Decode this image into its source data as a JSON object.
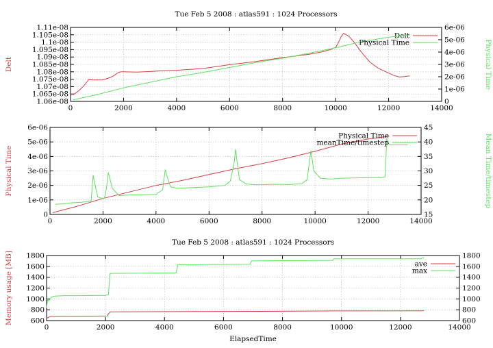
{
  "colors": {
    "red": "#d64040",
    "green": "#5fe05f"
  },
  "chart_data": [
    {
      "type": "line",
      "title": "Tue Feb 5 2008 : atlas591 : 1024 Processors",
      "xlim": [
        0,
        14000
      ],
      "xticks": [
        0,
        2000,
        4000,
        6000,
        8000,
        10000,
        12000,
        14000
      ],
      "xtick_labels": [
        "0",
        "2000",
        "4000",
        "6000",
        "8000",
        "10000",
        "12000",
        "14000"
      ],
      "ylabel_left": "Delt",
      "ylabel_right": "Physical Time",
      "ylim_left": [
        1.06e-08,
        1.11e-08
      ],
      "yticks_left": [
        1.06e-08,
        1.065e-08,
        1.07e-08,
        1.075e-08,
        1.08e-08,
        1.085e-08,
        1.09e-08,
        1.095e-08,
        1.1e-08,
        1.105e-08,
        1.11e-08
      ],
      "ytick_labels_left": [
        "1.06e-08",
        "1.065e-08",
        "1.07e-08",
        "1.075e-08",
        "1.08e-08",
        "1.085e-08",
        "1.09e-08",
        "1.095e-08",
        "1.1e-08",
        "1.105e-08",
        "1.11e-08"
      ],
      "ylim_right": [
        0,
        6e-06
      ],
      "yticks_right": [
        0,
        1e-06,
        2e-06,
        3e-06,
        4e-06,
        5e-06,
        6e-06
      ],
      "ytick_labels_right": [
        "0",
        "1e-06",
        "2e-06",
        "3e-06",
        "4e-06",
        "5e-06",
        "6e-06"
      ],
      "grid": true,
      "legend_position": "top-right",
      "series": [
        {
          "name": "Delt",
          "axis": "left",
          "color": "#d64040",
          "x": [
            100,
            300,
            500,
            700,
            800,
            1000,
            1200,
            1400,
            1600,
            1800,
            1900,
            2000,
            2500,
            3000,
            3500,
            4000,
            5000,
            6000,
            7000,
            8000,
            9000,
            9500,
            9800,
            10000,
            10100,
            10200,
            10300,
            10500,
            10700,
            10900,
            11100,
            11300,
            11600,
            11900,
            12200,
            12400,
            12600,
            12800
          ],
          "y": [
            1.0645e-08,
            1.067e-08,
            1.0705e-08,
            1.075e-08,
            1.0745e-08,
            1.0745e-08,
            1.0745e-08,
            1.0755e-08,
            1.077e-08,
            1.0795e-08,
            1.08e-08,
            1.08e-08,
            1.0798e-08,
            1.0802e-08,
            1.0808e-08,
            1.081e-08,
            1.0822e-08,
            1.0848e-08,
            1.087e-08,
            1.0896e-08,
            1.0918e-08,
            1.0935e-08,
            1.095e-08,
            1.0965e-08,
            1.0995e-08,
            1.1035e-08,
            1.106e-08,
            1.104e-08,
            1.1e-08,
            1.095e-08,
            1.0905e-08,
            1.0865e-08,
            1.0825e-08,
            1.08e-08,
            1.0775e-08,
            1.0765e-08,
            1.0768e-08,
            1.0772e-08
          ]
        },
        {
          "name": "Physical Time",
          "axis": "right",
          "color": "#5fe05f",
          "x": [
            100,
            1000,
            2000,
            3000,
            4000,
            5000,
            6000,
            7000,
            8000,
            9000,
            10000,
            11000,
            12000,
            12800
          ],
          "y": [
            1.2e-07,
            5.5e-07,
            1.1e-06,
            1.55e-06,
            2e-06,
            2.35e-06,
            2.75e-06,
            3.15e-06,
            3.5e-06,
            3.9e-06,
            4.35e-06,
            4.85e-06,
            5.2e-06,
            5.4e-06
          ]
        }
      ]
    },
    {
      "type": "line",
      "title": "",
      "xlim": [
        0,
        14000
      ],
      "xticks": [
        0,
        2000,
        4000,
        6000,
        8000,
        10000,
        12000,
        14000
      ],
      "xtick_labels": [
        "0",
        "2000",
        "4000",
        "6000",
        "8000",
        "10000",
        "12000",
        "14000"
      ],
      "ylabel_left": "Physical Time",
      "ylabel_right": "Mean Time/timestep",
      "ylim_left": [
        0,
        6e-06
      ],
      "yticks_left": [
        0,
        1e-06,
        2e-06,
        3e-06,
        4e-06,
        5e-06,
        6e-06
      ],
      "ytick_labels_left": [
        "0",
        "1e-06",
        "2e-06",
        "3e-06",
        "4e-06",
        "5e-06",
        "6e-06"
      ],
      "ylim_right": [
        15,
        45
      ],
      "yticks_right": [
        15,
        20,
        25,
        30,
        35,
        40,
        45
      ],
      "ytick_labels_right": [
        "15",
        "20",
        "25",
        "30",
        "35",
        "40",
        "45"
      ],
      "grid": true,
      "legend_position": "top-right",
      "series": [
        {
          "name": "Physical Time",
          "axis": "left",
          "color": "#d64040",
          "x": [
            100,
            1000,
            2000,
            3000,
            4000,
            5000,
            6000,
            7000,
            8000,
            9000,
            10000,
            11000,
            12000,
            12800
          ],
          "y": [
            1.2e-07,
            5.5e-07,
            1.1e-06,
            1.55e-06,
            2e-06,
            2.35e-06,
            2.75e-06,
            3.15e-06,
            3.5e-06,
            3.9e-06,
            4.35e-06,
            4.85e-06,
            5.2e-06,
            5.4e-06
          ]
        },
        {
          "name": "meanTime/timestep",
          "axis": "right",
          "color": "#5fe05f",
          "x": [
            200,
            400,
            800,
            1200,
            1550,
            1630,
            1680,
            1800,
            1950,
            2050,
            2130,
            2200,
            2350,
            2600,
            3000,
            3500,
            4000,
            4250,
            4350,
            4420,
            4550,
            4800,
            5200,
            6000,
            6600,
            6800,
            6950,
            7000,
            7060,
            7150,
            7400,
            7800,
            8500,
            9000,
            9500,
            9700,
            9800,
            9850,
            9950,
            10200,
            10600,
            11000,
            11500,
            12000,
            12500,
            12650,
            12700,
            12750,
            12850,
            13000,
            13500
          ],
          "y": [
            18.5,
            18.6,
            19,
            19.2,
            19.6,
            28.5,
            26,
            21,
            20.6,
            20.5,
            24,
            29.5,
            24,
            21.5,
            21.7,
            21.8,
            21.9,
            23.5,
            30.5,
            28,
            24.5,
            24,
            24.2,
            24.5,
            25,
            26.5,
            33,
            37.5,
            33,
            27,
            25.5,
            25.2,
            25.4,
            25.3,
            25.6,
            27,
            34,
            37,
            30,
            27.5,
            27.2,
            27.5,
            27.6,
            27.7,
            27.7,
            28,
            41,
            39.5,
            39,
            39,
            39
          ]
        }
      ]
    },
    {
      "type": "line",
      "title": "Tue Feb 5 2008 : atlas591 : 1024 Processors",
      "xlabel": "ElapsedTime",
      "xlim": [
        0,
        14000
      ],
      "xticks": [
        0,
        2000,
        4000,
        6000,
        8000,
        10000,
        12000,
        14000
      ],
      "xtick_labels": [
        "0",
        "2000",
        "4000",
        "6000",
        "8000",
        "10000",
        "12000",
        "14000"
      ],
      "ylabel_left": "Memory usage [MB]",
      "ylabel_right": "",
      "ylim_left": [
        600,
        1800
      ],
      "yticks_left": [
        600,
        800,
        1000,
        1200,
        1400,
        1600,
        1800
      ],
      "ytick_labels_left": [
        "600",
        "800",
        "1000",
        "1200",
        "1400",
        "1600",
        "1800"
      ],
      "ylim_right": [
        600,
        1800
      ],
      "yticks_right": [
        600,
        800,
        1000,
        1200,
        1400,
        1600,
        1800
      ],
      "ytick_labels_right": [
        "600",
        "800",
        "1000",
        "1200",
        "1400",
        "1600",
        "1800"
      ],
      "grid": true,
      "legend_position": "top-right",
      "series": [
        {
          "name": "ave",
          "axis": "left",
          "color": "#d64040",
          "x": [
            0,
            100,
            200,
            2050,
            2150,
            4500,
            7000,
            9800,
            12800
          ],
          "y": [
            640,
            670,
            680,
            685,
            760,
            765,
            770,
            778,
            780
          ]
        },
        {
          "name": "max",
          "axis": "left",
          "color": "#5fe05f",
          "x": [
            0,
            40,
            80,
            150,
            250,
            400,
            600,
            1000,
            2000,
            2100,
            2150,
            4400,
            4450,
            6900,
            6950,
            9700,
            9750,
            12700,
            12750,
            12800
          ],
          "y": [
            840,
            1000,
            960,
            1030,
            1050,
            1055,
            1060,
            1060,
            1065,
            1080,
            1470,
            1480,
            1630,
            1640,
            1700,
            1710,
            1740,
            1740,
            1760,
            1760
          ]
        }
      ]
    }
  ]
}
